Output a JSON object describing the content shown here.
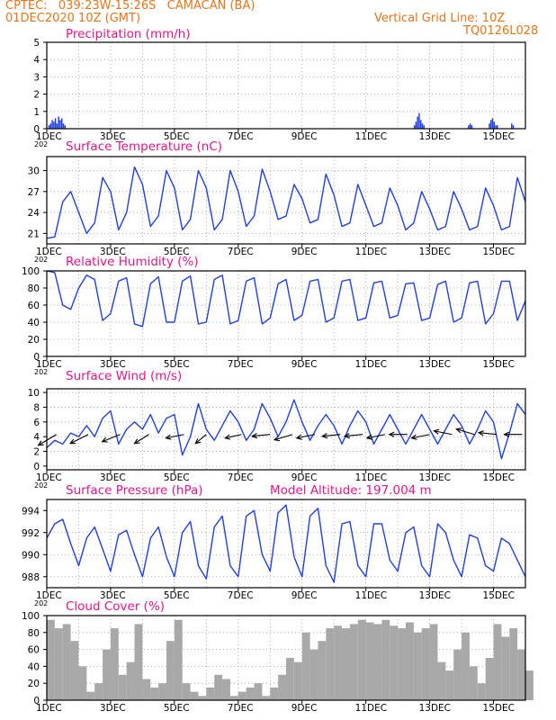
{
  "header": {
    "line1": "CPTEC:   039:23W-15:26S   CAMACAN (BA)",
    "line2": "01DEC2020 10Z (GMT)",
    "right1": "Vertical Grid Line: 10Z",
    "right2": "TQ0126L028"
  },
  "colors": {
    "header": "#e8741b",
    "title": "#e8148c",
    "series": "#2040e0",
    "cloud": "#a8a8a8",
    "wind_arrow": "#000000"
  },
  "x_axis": {
    "tick_labels": [
      "1DEC",
      "3DEC",
      "5DEC",
      "7DEC",
      "9DEC",
      "11DEC",
      "13DEC",
      "15DEC"
    ],
    "year_fragment": "202"
  },
  "chart_data": [
    {
      "type": "bar",
      "id": "precip",
      "title": "Precipitation (mm/h)",
      "ylim": [
        0,
        5
      ],
      "yticks": [
        0,
        1,
        2,
        3,
        4,
        5
      ],
      "x": [
        1.05,
        1.1,
        1.15,
        1.2,
        1.25,
        1.3,
        1.35,
        1.4,
        1.45,
        1.5,
        1.55,
        12.5,
        12.55,
        12.6,
        12.65,
        12.7,
        12.75,
        12.8,
        14.2,
        14.25,
        14.3,
        14.85,
        14.9,
        14.95,
        15.0,
        15.05,
        15.1,
        15.55,
        15.6
      ],
      "values": [
        0.2,
        0.3,
        0.5,
        0.4,
        0.6,
        0.3,
        0.7,
        0.5,
        0.6,
        0.3,
        0.2,
        0.2,
        0.4,
        0.7,
        0.9,
        0.5,
        0.3,
        0.2,
        0.2,
        0.3,
        0.2,
        0.3,
        0.5,
        0.6,
        0.4,
        0.2,
        0.2,
        0.3,
        0.2
      ]
    },
    {
      "type": "line",
      "id": "temp",
      "title": "Surface Temperature (nC)",
      "ylim": [
        19.5,
        32
      ],
      "yticks": [
        21,
        24,
        27,
        30
      ],
      "x": [
        1.0,
        1.25,
        1.5,
        1.75,
        2.0,
        2.25,
        2.5,
        2.75,
        3.0,
        3.25,
        3.5,
        3.75,
        4.0,
        4.25,
        4.5,
        4.75,
        5.0,
        5.25,
        5.5,
        5.75,
        6.0,
        6.25,
        6.5,
        6.75,
        7.0,
        7.25,
        7.5,
        7.75,
        8.0,
        8.25,
        8.5,
        8.75,
        9.0,
        9.25,
        9.5,
        9.75,
        10.0,
        10.25,
        10.5,
        10.75,
        11.0,
        11.25,
        11.5,
        11.75,
        12.0,
        12.25,
        12.5,
        12.75,
        13.0,
        13.25,
        13.5,
        13.75,
        14.0,
        14.25,
        14.5,
        14.75,
        15.0,
        15.25,
        15.5,
        15.75,
        16.0
      ],
      "values": [
        20.3,
        20.5,
        25.5,
        27.0,
        24.0,
        21.0,
        22.5,
        29.0,
        27.0,
        21.5,
        24.0,
        30.5,
        28.0,
        22.0,
        23.5,
        30.0,
        27.5,
        21.5,
        23.0,
        30.0,
        27.5,
        21.5,
        23.0,
        30.0,
        27.0,
        22.0,
        23.5,
        30.2,
        27.0,
        23.0,
        23.5,
        28.0,
        26.0,
        22.5,
        23.0,
        29.5,
        26.5,
        22.0,
        22.5,
        28.0,
        25.0,
        22.0,
        22.5,
        27.5,
        25.0,
        21.5,
        22.5,
        27.0,
        24.5,
        21.5,
        22.0,
        27.0,
        24.5,
        21.5,
        22.0,
        27.5,
        25.0,
        21.5,
        22.0,
        29.0,
        25.5
      ]
    },
    {
      "type": "line",
      "id": "rh",
      "title": "Relative Humidity (%)",
      "ylim": [
        0,
        100
      ],
      "yticks": [
        0,
        20,
        40,
        60,
        80,
        100
      ],
      "x": [
        1.0,
        1.25,
        1.5,
        1.75,
        2.0,
        2.25,
        2.5,
        2.75,
        3.0,
        3.25,
        3.5,
        3.75,
        4.0,
        4.25,
        4.5,
        4.75,
        5.0,
        5.25,
        5.5,
        5.75,
        6.0,
        6.25,
        6.5,
        6.75,
        7.0,
        7.25,
        7.5,
        7.75,
        8.0,
        8.25,
        8.5,
        8.75,
        9.0,
        9.25,
        9.5,
        9.75,
        10.0,
        10.25,
        10.5,
        10.75,
        11.0,
        11.25,
        11.5,
        11.75,
        12.0,
        12.25,
        12.5,
        12.75,
        13.0,
        13.25,
        13.5,
        13.75,
        14.0,
        14.25,
        14.5,
        14.75,
        15.0,
        15.25,
        15.5,
        15.75,
        16.0
      ],
      "values": [
        100,
        98,
        60,
        55,
        80,
        95,
        90,
        42,
        50,
        88,
        92,
        38,
        35,
        85,
        93,
        40,
        40,
        88,
        94,
        38,
        40,
        90,
        95,
        38,
        42,
        88,
        92,
        38,
        45,
        85,
        90,
        42,
        48,
        88,
        90,
        40,
        45,
        88,
        90,
        42,
        45,
        86,
        88,
        45,
        48,
        85,
        86,
        42,
        45,
        84,
        88,
        40,
        45,
        86,
        88,
        38,
        50,
        88,
        88,
        42,
        65
      ]
    },
    {
      "type": "line",
      "id": "wind",
      "title": "Surface Wind (m/s)",
      "ylim": [
        -0.5,
        10.5
      ],
      "yticks": [
        0,
        2,
        4,
        6,
        8,
        10
      ],
      "x": [
        1.0,
        1.25,
        1.5,
        1.75,
        2.0,
        2.25,
        2.5,
        2.75,
        3.0,
        3.25,
        3.5,
        3.75,
        4.0,
        4.25,
        4.5,
        4.75,
        5.0,
        5.25,
        5.5,
        5.75,
        6.0,
        6.25,
        6.5,
        6.75,
        7.0,
        7.25,
        7.5,
        7.75,
        8.0,
        8.25,
        8.5,
        8.75,
        9.0,
        9.25,
        9.5,
        9.75,
        10.0,
        10.25,
        10.5,
        10.75,
        11.0,
        11.25,
        11.5,
        11.75,
        12.0,
        12.25,
        12.5,
        12.75,
        13.0,
        13.25,
        13.5,
        13.75,
        14.0,
        14.25,
        14.5,
        14.75,
        15.0,
        15.25,
        15.5,
        15.75,
        16.0
      ],
      "values": [
        2.5,
        3.5,
        3.0,
        4.5,
        4.0,
        5.5,
        4.0,
        6.5,
        7.5,
        3.0,
        5.0,
        6.0,
        5.0,
        7.0,
        4.5,
        6.5,
        7.0,
        1.5,
        4.0,
        8.5,
        5.0,
        3.5,
        5.5,
        7.5,
        6.0,
        3.5,
        5.0,
        8.5,
        6.5,
        4.0,
        6.0,
        9.0,
        6.0,
        3.5,
        5.5,
        7.0,
        5.5,
        3.0,
        5.5,
        7.5,
        6.0,
        3.0,
        5.0,
        7.0,
        5.0,
        3.0,
        5.0,
        7.0,
        5.0,
        3.0,
        5.0,
        7.0,
        5.5,
        3.0,
        5.0,
        7.5,
        6.0,
        1.0,
        4.5,
        8.5,
        7.0
      ],
      "arrows_x": [
        1.3,
        2.3,
        3.3,
        4.2,
        5.3,
        6.0,
        7.1,
        8.0,
        8.7,
        9.4,
        10.2,
        10.9,
        11.6,
        12.3,
        13.0,
        13.7,
        14.4,
        15.1,
        15.9
      ],
      "arrows_dx": [
        -1,
        -1,
        -1,
        -0.8,
        -1,
        -0.6,
        -0.9,
        -1,
        -1,
        -1,
        -1,
        -1,
        -1,
        -1,
        -1,
        -1,
        -1,
        -1,
        -1
      ],
      "arrows_dy": [
        -0.6,
        -0.5,
        -0.4,
        -0.5,
        -0.2,
        -0.5,
        -0.2,
        -0.1,
        -0.3,
        -0.2,
        -0.1,
        -0.1,
        -0.2,
        0,
        -0.2,
        0.2,
        0.3,
        0.1,
        0
      ]
    },
    {
      "type": "line",
      "id": "pressure",
      "title": "Surface Pressure (hPa)",
      "subtitle": "Model Altitude: 197.004 m",
      "ylim": [
        987,
        995
      ],
      "yticks": [
        988,
        990,
        992,
        994
      ],
      "x": [
        1.0,
        1.25,
        1.5,
        1.75,
        2.0,
        2.25,
        2.5,
        2.75,
        3.0,
        3.25,
        3.5,
        3.75,
        4.0,
        4.25,
        4.5,
        4.75,
        5.0,
        5.25,
        5.5,
        5.75,
        6.0,
        6.25,
        6.5,
        6.75,
        7.0,
        7.25,
        7.5,
        7.75,
        8.0,
        8.25,
        8.5,
        8.75,
        9.0,
        9.25,
        9.5,
        9.75,
        10.0,
        10.25,
        10.5,
        10.75,
        11.0,
        11.25,
        11.5,
        11.75,
        12.0,
        12.25,
        12.5,
        12.75,
        13.0,
        13.25,
        13.5,
        13.75,
        14.0,
        14.25,
        14.5,
        14.75,
        15.0,
        15.25,
        15.5,
        15.75,
        16.0
      ],
      "values": [
        991.5,
        992.8,
        993.2,
        991.0,
        989.0,
        991.5,
        992.5,
        990.5,
        988.5,
        991.8,
        992.2,
        990.0,
        988.0,
        991.5,
        992.5,
        989.8,
        988.0,
        992.0,
        993.0,
        989.0,
        987.8,
        992.5,
        993.5,
        989.0,
        988.0,
        993.5,
        994.0,
        990.0,
        988.5,
        993.8,
        994.5,
        989.8,
        988.0,
        993.5,
        994.2,
        989.0,
        987.5,
        992.8,
        993.0,
        989.0,
        988.0,
        992.8,
        992.8,
        989.5,
        988.5,
        992.0,
        992.5,
        989.0,
        988.0,
        992.8,
        992.0,
        989.5,
        988.0,
        991.8,
        991.5,
        989.0,
        988.5,
        991.5,
        991.0,
        989.5,
        988.0
      ]
    },
    {
      "type": "bar",
      "id": "cloud",
      "title": "Cloud Cover (%)",
      "ylim": [
        0,
        100
      ],
      "yticks": [
        0,
        20,
        40,
        60,
        80,
        100
      ],
      "x": [
        1.0,
        1.25,
        1.5,
        1.75,
        2.0,
        2.25,
        2.5,
        2.75,
        3.0,
        3.25,
        3.5,
        3.75,
        4.0,
        4.25,
        4.5,
        4.75,
        5.0,
        5.25,
        5.5,
        5.75,
        6.0,
        6.25,
        6.5,
        6.75,
        7.0,
        7.25,
        7.5,
        7.75,
        8.0,
        8.25,
        8.5,
        8.75,
        9.0,
        9.25,
        9.5,
        9.75,
        10.0,
        10.25,
        10.5,
        10.75,
        11.0,
        11.25,
        11.5,
        11.75,
        12.0,
        12.25,
        12.5,
        12.75,
        13.0,
        13.25,
        13.5,
        13.75,
        14.0,
        14.25,
        14.5,
        14.75,
        15.0,
        15.25,
        15.5,
        15.75,
        16.0
      ],
      "values": [
        95,
        85,
        90,
        70,
        40,
        10,
        20,
        60,
        85,
        30,
        45,
        90,
        25,
        15,
        20,
        70,
        95,
        20,
        10,
        5,
        15,
        30,
        25,
        5,
        10,
        15,
        20,
        5,
        15,
        30,
        50,
        45,
        80,
        60,
        70,
        85,
        88,
        85,
        90,
        95,
        92,
        90,
        95,
        88,
        85,
        92,
        80,
        85,
        90,
        45,
        35,
        60,
        80,
        40,
        20,
        50,
        90,
        75,
        85,
        60,
        35
      ]
    }
  ]
}
